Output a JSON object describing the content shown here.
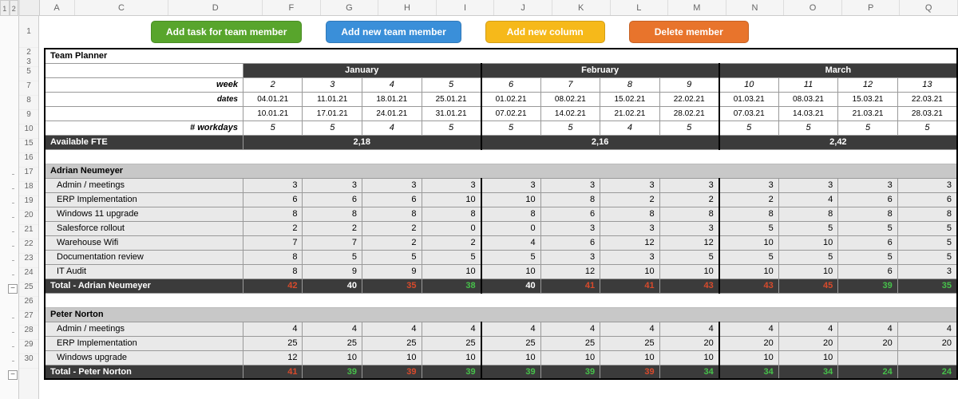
{
  "columns": [
    "A",
    "C",
    "D",
    "F",
    "G",
    "H",
    "I",
    "J",
    "K",
    "L",
    "M",
    "N",
    "O",
    "P",
    "Q"
  ],
  "buttons": {
    "add_task": {
      "label": "Add task for team member",
      "bg": "#58a52c"
    },
    "add_member": {
      "label": "Add new team member",
      "bg": "#3a8fd9"
    },
    "add_column": {
      "label": "Add new column",
      "bg": "#f6b91a"
    },
    "del_member": {
      "label": "Delete member",
      "bg": "#e8742c"
    }
  },
  "title": "Team Planner",
  "labels": {
    "week": "week",
    "dates": "dates",
    "workdays": "# workdays",
    "fte": "Available FTE"
  },
  "months": [
    {
      "name": "January",
      "span": 4
    },
    {
      "name": "February",
      "span": 4
    },
    {
      "name": "March",
      "span": 4
    }
  ],
  "weeks": [
    "2",
    "3",
    "4",
    "5",
    "6",
    "7",
    "8",
    "9",
    "10",
    "11",
    "12",
    "13"
  ],
  "dates_top": [
    "04.01.21",
    "11.01.21",
    "18.01.21",
    "25.01.21",
    "01.02.21",
    "08.02.21",
    "15.02.21",
    "22.02.21",
    "01.03.21",
    "08.03.21",
    "15.03.21",
    "22.03.21"
  ],
  "dates_bot": [
    "10.01.21",
    "17.01.21",
    "24.01.21",
    "31.01.21",
    "07.02.21",
    "14.02.21",
    "21.02.21",
    "28.02.21",
    "07.03.21",
    "14.03.21",
    "21.03.21",
    "28.03.21"
  ],
  "workdays": [
    "5",
    "5",
    "4",
    "5",
    "5",
    "5",
    "4",
    "5",
    "5",
    "5",
    "5",
    "5"
  ],
  "fte": [
    "",
    "2,18",
    "",
    "",
    "",
    "2,16",
    "",
    "",
    "",
    "2,42",
    "",
    ""
  ],
  "row_nums": {
    "title": "",
    "r1": "1",
    "r2": "2",
    "r3": "3",
    "r5": "5",
    "r7": "7",
    "r8": "8",
    "r9": "9",
    "r10": "10",
    "r15": "15",
    "r16": "16",
    "r17": "17",
    "r18": "18",
    "r19": "19",
    "r20": "20",
    "r21": "21",
    "r22": "22",
    "r23": "23",
    "r24": "24",
    "r25": "25",
    "r26": "26",
    "r27": "27",
    "r28": "28",
    "r29": "29",
    "r30": "30"
  },
  "colors": {
    "red": "#d94a2b",
    "green": "#46c14a",
    "white": "#ffffff"
  },
  "members": [
    {
      "name": "Adrian Neumeyer",
      "tasks": [
        {
          "name": "Admin / meetings",
          "vals": [
            3,
            3,
            3,
            3,
            3,
            3,
            3,
            3,
            3,
            3,
            3,
            3
          ]
        },
        {
          "name": "ERP Implementation",
          "vals": [
            6,
            6,
            6,
            10,
            10,
            8,
            2,
            2,
            2,
            4,
            6,
            6
          ]
        },
        {
          "name": "Windows 11 upgrade",
          "vals": [
            8,
            8,
            8,
            8,
            8,
            6,
            8,
            8,
            8,
            8,
            8,
            8
          ]
        },
        {
          "name": "Salesforce rollout",
          "vals": [
            2,
            2,
            2,
            0,
            0,
            3,
            3,
            3,
            5,
            5,
            5,
            5
          ]
        },
        {
          "name": "Warehouse Wifi",
          "vals": [
            7,
            7,
            2,
            2,
            4,
            6,
            12,
            12,
            10,
            10,
            6,
            5
          ]
        },
        {
          "name": "Documentation review",
          "vals": [
            8,
            5,
            5,
            5,
            5,
            3,
            3,
            5,
            5,
            5,
            5,
            5
          ]
        },
        {
          "name": "IT Audit",
          "vals": [
            8,
            9,
            9,
            10,
            10,
            12,
            10,
            10,
            10,
            10,
            6,
            3
          ]
        }
      ],
      "total_label": "Total - Adrian Neumeyer",
      "totals": [
        {
          "v": "42",
          "c": "red"
        },
        {
          "v": "40",
          "c": "white"
        },
        {
          "v": "35",
          "c": "red"
        },
        {
          "v": "38",
          "c": "green"
        },
        {
          "v": "40",
          "c": "white"
        },
        {
          "v": "41",
          "c": "red"
        },
        {
          "v": "41",
          "c": "red"
        },
        {
          "v": "43",
          "c": "red"
        },
        {
          "v": "43",
          "c": "red"
        },
        {
          "v": "45",
          "c": "red"
        },
        {
          "v": "39",
          "c": "green"
        },
        {
          "v": "35",
          "c": "green"
        }
      ]
    },
    {
      "name": "Peter Norton",
      "tasks": [
        {
          "name": "Admin / meetings",
          "vals": [
            4,
            4,
            4,
            4,
            4,
            4,
            4,
            4,
            4,
            4,
            4,
            4
          ]
        },
        {
          "name": "ERP Implementation",
          "vals": [
            25,
            25,
            25,
            25,
            25,
            25,
            25,
            20,
            20,
            20,
            20,
            20
          ]
        },
        {
          "name": "Windows upgrade",
          "vals": [
            12,
            10,
            10,
            10,
            10,
            10,
            10,
            10,
            10,
            10,
            "",
            ""
          ]
        }
      ],
      "total_label": "Total - Peter Norton",
      "totals": [
        {
          "v": "41",
          "c": "red"
        },
        {
          "v": "39",
          "c": "green"
        },
        {
          "v": "39",
          "c": "red"
        },
        {
          "v": "39",
          "c": "green"
        },
        {
          "v": "39",
          "c": "green"
        },
        {
          "v": "39",
          "c": "green"
        },
        {
          "v": "39",
          "c": "red"
        },
        {
          "v": "34",
          "c": "green"
        },
        {
          "v": "34",
          "c": "green"
        },
        {
          "v": "34",
          "c": "green"
        },
        {
          "v": "24",
          "c": "green"
        },
        {
          "v": "24",
          "c": "green"
        }
      ]
    }
  ]
}
